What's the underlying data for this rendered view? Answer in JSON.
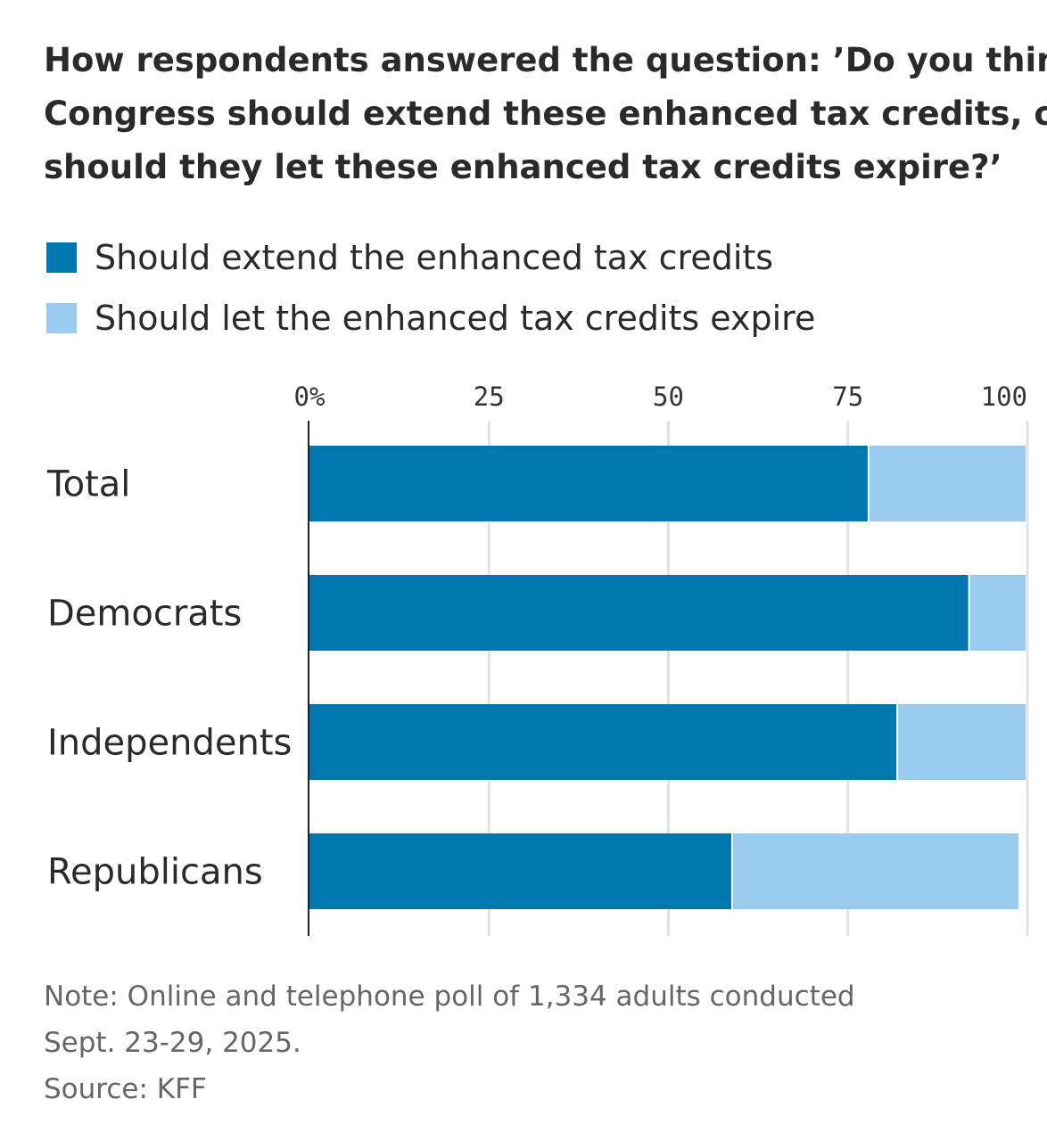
{
  "chart_data": {
    "type": "bar",
    "orientation": "horizontal",
    "stacked": true,
    "title": [
      "How respondents answered the question: ’Do you think",
      "Congress should extend these enhanced tax credits, or",
      "should they let these enhanced tax credits expire?’"
    ],
    "categories": [
      "Total",
      "Democrats",
      "Independents",
      "Republicans"
    ],
    "series": [
      {
        "name": "Should extend the enhanced tax credits",
        "color": "#0077ae",
        "values": [
          78,
          92,
          82,
          59
        ]
      },
      {
        "name": "Should let the enhanced tax credits expire",
        "color": "#98cbee",
        "values": [
          22,
          8,
          18,
          40
        ]
      }
    ],
    "xlim": [
      0,
      100
    ],
    "xticks": [
      0,
      25,
      50,
      75,
      100
    ],
    "xtick_labels": [
      "0%",
      "25",
      "50",
      "75",
      "100"
    ],
    "grid": true,
    "legend_position": "top-left",
    "notes": [
      "Note: Online and telephone poll of 1,334 adults conducted",
      "Sept. 23-29, 2025.",
      "Source: KFF"
    ]
  }
}
